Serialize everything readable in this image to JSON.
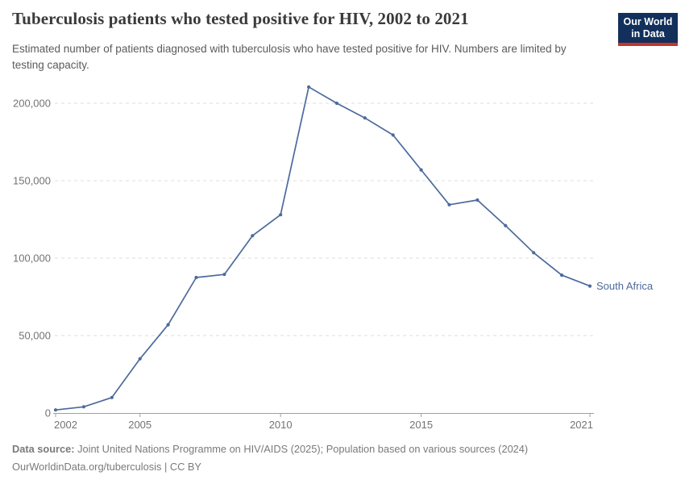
{
  "header": {
    "title": "Tuberculosis patients who tested positive for HIV, 2002 to 2021",
    "subtitle": "Estimated number of patients diagnosed with tuberculosis who have tested positive for HIV. Numbers are limited by testing capacity.",
    "logo": {
      "line1": "Our World",
      "line2": "in Data"
    }
  },
  "chart_data": {
    "type": "line",
    "title": "Tuberculosis patients who tested positive for HIV, 2002 to 2021",
    "xlabel": "",
    "ylabel": "",
    "xlim": [
      2002,
      2021
    ],
    "ylim": [
      0,
      220000
    ],
    "x_ticks": [
      2002,
      2005,
      2010,
      2015,
      2021
    ],
    "y_ticks": [
      0,
      50000,
      100000,
      150000,
      200000
    ],
    "grid": "dashed-horizontal",
    "legend_position": "end-of-line",
    "series": [
      {
        "name": "South Africa",
        "x": [
          2002,
          2003,
          2004,
          2005,
          2006,
          2007,
          2008,
          2009,
          2010,
          2011,
          2012,
          2013,
          2014,
          2015,
          2016,
          2017,
          2018,
          2019,
          2020,
          2021
        ],
        "values": [
          2000,
          4000,
          10000,
          35000,
          57000,
          87500,
          89500,
          114500,
          128000,
          210500,
          200000,
          190500,
          179500,
          157000,
          134500,
          137500,
          121000,
          103500,
          89000,
          82000
        ]
      }
    ]
  },
  "colors": {
    "line": "#4c6a9c",
    "series_label": "#4c6a9c",
    "grid": "#dcdcdc",
    "axis": "#a0a0a0",
    "tick_label": "#737373",
    "title": "#3a3a3a",
    "subtitle": "#5b5b5b",
    "footer": "#7a7a7a",
    "logo_bg": "#12305b",
    "logo_stripe": "#c7322c"
  },
  "footer": {
    "source_label": "Data source:",
    "source_text": " Joint United Nations Programme on HIV/AIDS (2025); Population based on various sources (2024)",
    "license_line": "OurWorldinData.org/tuberculosis | CC BY"
  }
}
